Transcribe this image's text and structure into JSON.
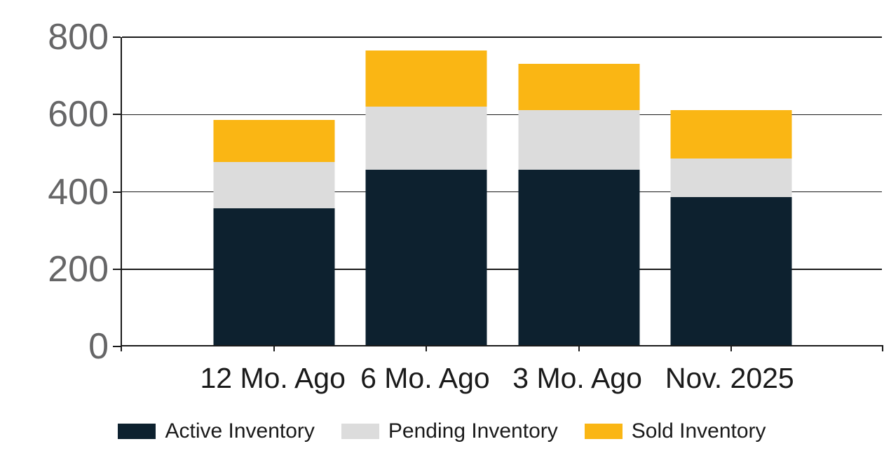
{
  "chart_data": {
    "type": "bar",
    "stacked": true,
    "title": "",
    "xlabel": "",
    "ylabel": "",
    "categories": [
      "12 Mo. Ago",
      "6 Mo. Ago",
      "3 Mo. Ago",
      "Nov. 2025"
    ],
    "series": [
      {
        "name": "Active Inventory",
        "color": "#0d212f",
        "values": [
          355,
          455,
          455,
          385
        ]
      },
      {
        "name": "Pending Inventory",
        "color": "#dcdcdc",
        "values": [
          120,
          165,
          155,
          100
        ]
      },
      {
        "name": "Sold Inventory",
        "color": "#fab614",
        "values": [
          110,
          145,
          120,
          125
        ]
      }
    ],
    "stack_totals": [
      585,
      765,
      730,
      610
    ],
    "ylim": [
      0,
      800
    ],
    "yticks": [
      0,
      200,
      400,
      600,
      800
    ],
    "ytick_labels": [
      "0",
      "200",
      "400",
      "600",
      "800"
    ],
    "grid": true,
    "legend_position": "bottom"
  },
  "colors": {
    "axis_line": "#1a1a1a",
    "gridline": "#1a1a1a",
    "y_label_text": "#666667",
    "x_label_text": "#1a1a1a",
    "legend_text": "#1a1a1a",
    "background": "#ffffff"
  }
}
